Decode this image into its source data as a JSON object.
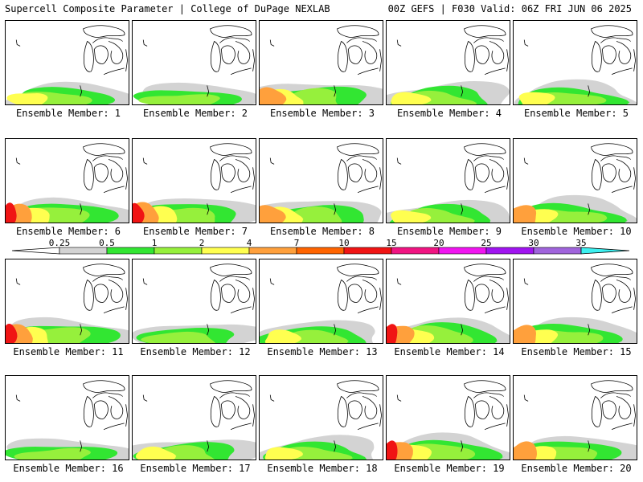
{
  "header": {
    "left": "Supercell Composite Parameter | College of DuPage NEXLAB",
    "right": "00Z GEFS | F030 Valid: 06Z FRI JUN 06 2025"
  },
  "panel_label_prefix": "Ensemble Member:",
  "members": [
    {
      "label": "Ensemble Member: 1",
      "level": 2
    },
    {
      "label": "Ensemble Member: 2",
      "level": 1
    },
    {
      "label": "Ensemble Member: 3",
      "level": 3
    },
    {
      "label": "Ensemble Member: 4",
      "level": 2
    },
    {
      "label": "Ensemble Member: 5",
      "level": 2
    },
    {
      "label": "Ensemble Member: 6",
      "level": 4
    },
    {
      "label": "Ensemble Member: 7",
      "level": 4
    },
    {
      "label": "Ensemble Member: 8",
      "level": 3
    },
    {
      "label": "Ensemble Member: 9",
      "level": 2
    },
    {
      "label": "Ensemble Member: 10",
      "level": 3
    },
    {
      "label": "Ensemble Member: 11",
      "level": 4
    },
    {
      "label": "Ensemble Member: 12",
      "level": 1
    },
    {
      "label": "Ensemble Member: 13",
      "level": 2
    },
    {
      "label": "Ensemble Member: 14",
      "level": 4
    },
    {
      "label": "Ensemble Member: 15",
      "level": 3
    },
    {
      "label": "Ensemble Member: 16",
      "level": 1
    },
    {
      "label": "Ensemble Member: 17",
      "level": 2
    },
    {
      "label": "Ensemble Member: 18",
      "level": 2
    },
    {
      "label": "Ensemble Member: 19",
      "level": 4
    },
    {
      "label": "Ensemble Member: 20",
      "level": 3
    }
  ],
  "colorbar": {
    "ticks": [
      "0.25",
      "0.5",
      "1",
      "2",
      "4",
      "7",
      "10",
      "15",
      "20",
      "25",
      "30",
      "35"
    ],
    "colors": [
      "#d3d3d3",
      "#32e632",
      "#96f03c",
      "#ffff50",
      "#ffa03c",
      "#ff6400",
      "#f01414",
      "#f01482",
      "#f014f0",
      "#a014f0",
      "#a064dc",
      "#3cf0f0"
    ]
  },
  "contour_colors": {
    "gray": "#d3d3d3",
    "green": "#32e632",
    "lightgreen": "#96f03c",
    "yellow": "#ffff50",
    "orange": "#ffa03c",
    "red": "#f01414"
  }
}
